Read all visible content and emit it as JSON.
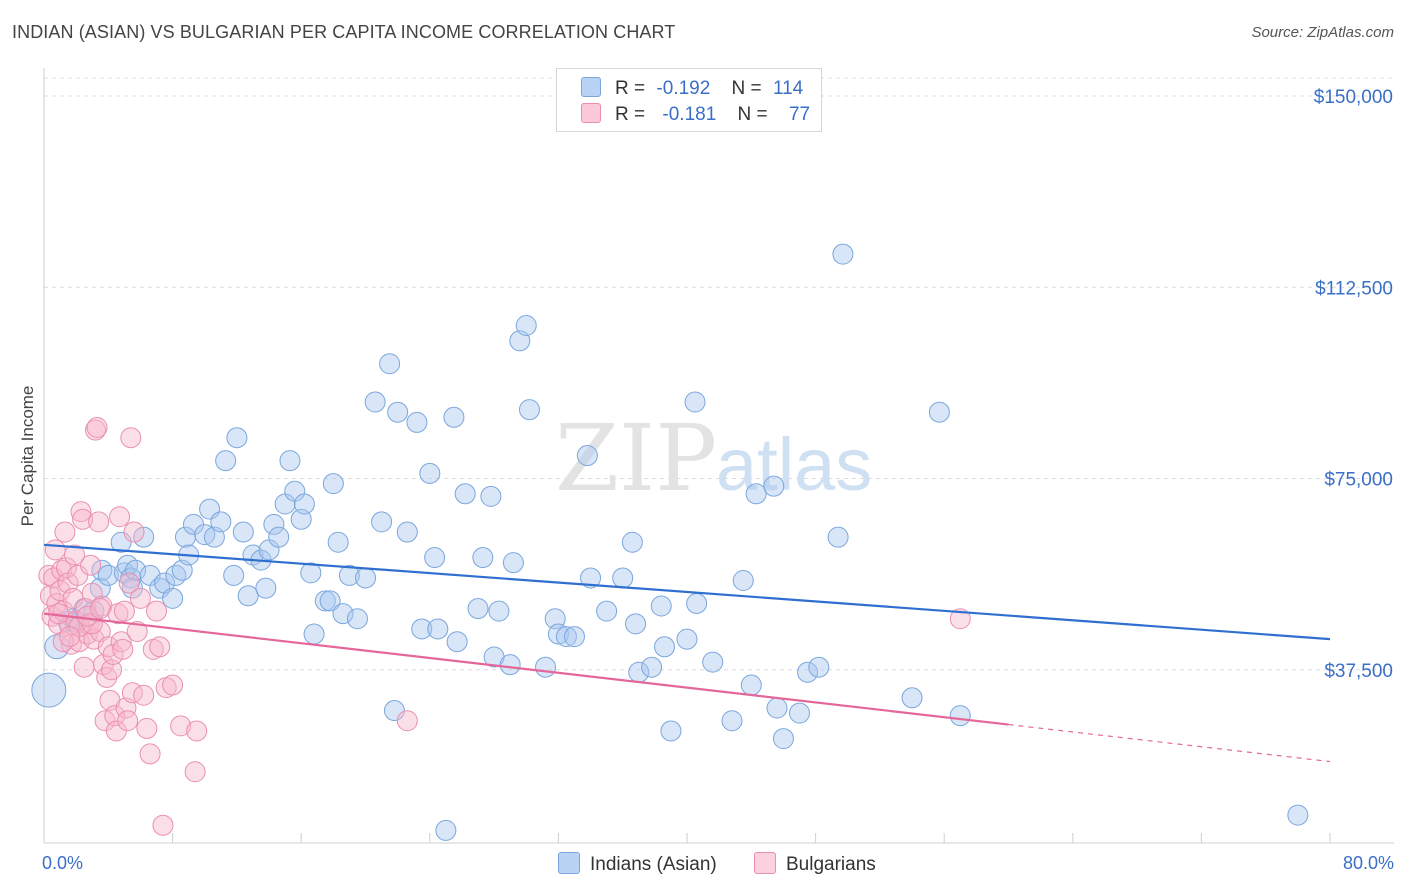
{
  "title": "INDIAN (ASIAN) VS BULGARIAN PER CAPITA INCOME CORRELATION CHART",
  "source": "Source: ZipAtlas.com",
  "watermark": {
    "zip": "ZIP",
    "atlas": "atlas"
  },
  "legend_top": [
    {
      "r_label": "R =",
      "r_value": "-0.192",
      "n_label": "N =",
      "n_value": "114"
    },
    {
      "r_label": "R =",
      "r_value": "-0.181",
      "n_label": "N =",
      "n_value": "77"
    }
  ],
  "legend_bottom": [
    "Indians (Asian)",
    "Bulgarians"
  ],
  "x_labels": {
    "left": "0.0%",
    "right": "80.0%"
  },
  "colors": {
    "blue_fill": "#a9c8f0",
    "blue_stroke": "#7aa6dd",
    "blue_line": "#2f6fd0",
    "pink_fill": "#f6b8cd",
    "pink_stroke": "#ea8fb0",
    "pink_line": "#e5679a",
    "axis_label": "#3a6fc8",
    "grid": "#dcdcdc"
  },
  "chart_data": {
    "type": "scatter",
    "title": "INDIAN (ASIAN) VS BULGARIAN PER CAPITA INCOME CORRELATION CHART",
    "xlabel": "",
    "ylabel": "Per Capita Income",
    "xlim": [
      0,
      80
    ],
    "ylim": [
      0,
      150000
    ],
    "y_ticks": [
      37500,
      75000,
      112500,
      150000
    ],
    "y_tick_labels": [
      "$37,500",
      "$75,000",
      "$112,500",
      "$150,000"
    ],
    "series": [
      {
        "name": "Indians (Asian)",
        "r": -0.192,
        "n": 114,
        "trend": {
          "x0": 0,
          "y0": 62000,
          "x1": 80,
          "y1": 43500,
          "solid_to": 80
        },
        "points": [
          [
            0.3,
            33500
          ],
          [
            0.8,
            42000
          ],
          [
            1.5,
            47000
          ],
          [
            1.8,
            47500
          ],
          [
            2,
            46500
          ],
          [
            2.5,
            49500
          ],
          [
            3.1,
            49000
          ],
          [
            3.5,
            53500
          ],
          [
            3.6,
            57000
          ],
          [
            4,
            56000
          ],
          [
            4.8,
            62500
          ],
          [
            5,
            56500
          ],
          [
            5.2,
            58000
          ],
          [
            5.4,
            55500
          ],
          [
            5.5,
            53500
          ],
          [
            5.7,
            57000
          ],
          [
            6.2,
            63500
          ],
          [
            6.6,
            56000
          ],
          [
            7.2,
            53500
          ],
          [
            7.5,
            54500
          ],
          [
            8,
            51500
          ],
          [
            8.2,
            56000
          ],
          [
            8.6,
            57000
          ],
          [
            8.8,
            63500
          ],
          [
            9,
            60000
          ],
          [
            9.3,
            66000
          ],
          [
            10,
            64000
          ],
          [
            10.3,
            69000
          ],
          [
            10.6,
            63500
          ],
          [
            11,
            66500
          ],
          [
            11.3,
            78500
          ],
          [
            11.8,
            56000
          ],
          [
            12,
            83000
          ],
          [
            12.4,
            64500
          ],
          [
            12.7,
            52000
          ],
          [
            13,
            60000
          ],
          [
            13.5,
            59000
          ],
          [
            13.8,
            53500
          ],
          [
            14,
            61000
          ],
          [
            14.3,
            66000
          ],
          [
            14.6,
            63500
          ],
          [
            15,
            70000
          ],
          [
            15.3,
            78500
          ],
          [
            15.6,
            72500
          ],
          [
            16,
            67000
          ],
          [
            16.2,
            70000
          ],
          [
            16.6,
            56500
          ],
          [
            16.8,
            44500
          ],
          [
            17.5,
            51000
          ],
          [
            17.8,
            51000
          ],
          [
            18,
            74000
          ],
          [
            18.3,
            62500
          ],
          [
            18.6,
            48500
          ],
          [
            19,
            56000
          ],
          [
            19.5,
            47500
          ],
          [
            20,
            55500
          ],
          [
            20.6,
            90000
          ],
          [
            21,
            66500
          ],
          [
            21.5,
            97500
          ],
          [
            21.8,
            29500
          ],
          [
            22,
            88000
          ],
          [
            22.6,
            64500
          ],
          [
            23.2,
            86000
          ],
          [
            23.5,
            45500
          ],
          [
            24,
            76000
          ],
          [
            24.3,
            59500
          ],
          [
            24.5,
            45500
          ],
          [
            25,
            6000
          ],
          [
            25.5,
            87000
          ],
          [
            25.7,
            43000
          ],
          [
            26.2,
            72000
          ],
          [
            27,
            49500
          ],
          [
            27.3,
            59500
          ],
          [
            27.8,
            71500
          ],
          [
            28,
            40000
          ],
          [
            28.3,
            49000
          ],
          [
            29,
            38500
          ],
          [
            29.2,
            58500
          ],
          [
            29.6,
            102000
          ],
          [
            30,
            105000
          ],
          [
            30.2,
            88500
          ],
          [
            31.2,
            38000
          ],
          [
            31.8,
            47500
          ],
          [
            32,
            44500
          ],
          [
            32.5,
            44000
          ],
          [
            33,
            44000
          ],
          [
            33.8,
            79500
          ],
          [
            34,
            55500
          ],
          [
            35,
            49000
          ],
          [
            36,
            55500
          ],
          [
            36.6,
            62500
          ],
          [
            36.8,
            46500
          ],
          [
            37,
            37000
          ],
          [
            37.8,
            38000
          ],
          [
            38.4,
            50000
          ],
          [
            38.6,
            42000
          ],
          [
            39,
            25500
          ],
          [
            40,
            43500
          ],
          [
            40.5,
            90000
          ],
          [
            40.6,
            50500
          ],
          [
            41.6,
            39000
          ],
          [
            42.8,
            27500
          ],
          [
            43.5,
            55000
          ],
          [
            44,
            34500
          ],
          [
            44.3,
            72000
          ],
          [
            45.4,
            73500
          ],
          [
            45.6,
            30000
          ],
          [
            46,
            24000
          ],
          [
            47,
            29000
          ],
          [
            47.5,
            37000
          ],
          [
            48.2,
            38000
          ],
          [
            49.4,
            63500
          ],
          [
            49.7,
            119000
          ],
          [
            54,
            32000
          ],
          [
            55.7,
            88000
          ],
          [
            57,
            28500
          ],
          [
            78,
            9000
          ]
        ]
      },
      {
        "name": "Bulgarians",
        "r": -0.181,
        "n": 77,
        "trend": {
          "x0": 0,
          "y0": 48500,
          "x1": 80,
          "y1": 19500,
          "solid_to": 60
        },
        "points": [
          [
            0.3,
            56000
          ],
          [
            0.4,
            52000
          ],
          [
            0.5,
            48000
          ],
          [
            0.6,
            55500
          ],
          [
            0.7,
            61000
          ],
          [
            0.8,
            50500
          ],
          [
            0.9,
            46500
          ],
          [
            1,
            53000
          ],
          [
            1.1,
            57000
          ],
          [
            1.2,
            49000
          ],
          [
            1.3,
            64500
          ],
          [
            1.4,
            57500
          ],
          [
            1.5,
            54500
          ],
          [
            1.6,
            46000
          ],
          [
            1.7,
            42500
          ],
          [
            1.8,
            51500
          ],
          [
            1.9,
            60000
          ],
          [
            2,
            47000
          ],
          [
            2.1,
            56000
          ],
          [
            2.2,
            43000
          ],
          [
            2.3,
            68500
          ],
          [
            2.4,
            67000
          ],
          [
            2.5,
            38000
          ],
          [
            2.6,
            49500
          ],
          [
            2.7,
            44500
          ],
          [
            2.8,
            46500
          ],
          [
            2.9,
            58000
          ],
          [
            3,
            52500
          ],
          [
            3.1,
            43500
          ],
          [
            3.2,
            84500
          ],
          [
            3.3,
            85000
          ],
          [
            3.4,
            66500
          ],
          [
            3.5,
            45000
          ],
          [
            3.6,
            50000
          ],
          [
            3.7,
            38500
          ],
          [
            3.8,
            27500
          ],
          [
            3.9,
            36000
          ],
          [
            4,
            42000
          ],
          [
            4.1,
            31500
          ],
          [
            4.2,
            37500
          ],
          [
            4.3,
            40500
          ],
          [
            4.4,
            28500
          ],
          [
            4.5,
            25500
          ],
          [
            4.6,
            48500
          ],
          [
            4.7,
            67500
          ],
          [
            4.8,
            43000
          ],
          [
            4.9,
            41500
          ],
          [
            5,
            49000
          ],
          [
            5.1,
            30000
          ],
          [
            5.2,
            27500
          ],
          [
            5.3,
            54500
          ],
          [
            5.4,
            83000
          ],
          [
            5.5,
            33000
          ],
          [
            5.6,
            64500
          ],
          [
            5.8,
            45000
          ],
          [
            6,
            51500
          ],
          [
            6.2,
            32500
          ],
          [
            6.4,
            26000
          ],
          [
            6.6,
            21000
          ],
          [
            6.8,
            41500
          ],
          [
            7,
            49000
          ],
          [
            7.2,
            42000
          ],
          [
            7.4,
            7000
          ],
          [
            7.6,
            34000
          ],
          [
            8,
            34500
          ],
          [
            8.5,
            26500
          ],
          [
            9.5,
            25500
          ],
          [
            9.4,
            17500
          ],
          [
            22.6,
            27500
          ],
          [
            57,
            47500
          ],
          [
            1.2,
            43000
          ],
          [
            2.2,
            46000
          ],
          [
            3,
            46500
          ],
          [
            0.9,
            48500
          ],
          [
            1.6,
            44000
          ],
          [
            2.7,
            48000
          ],
          [
            3.5,
            49500
          ]
        ]
      }
    ]
  }
}
